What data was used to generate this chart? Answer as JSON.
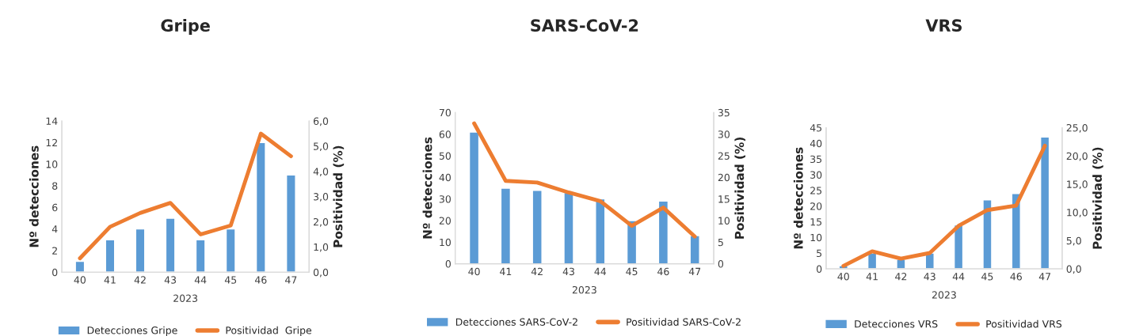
{
  "chart_data": [
    {
      "type": "bar",
      "title": "Gripe",
      "xlabel": "2023",
      "ylabel": "Nº detecciones",
      "y2label": "Positividad (%)",
      "categories": [
        "40",
        "41",
        "42",
        "43",
        "44",
        "45",
        "46",
        "47"
      ],
      "series": [
        {
          "name": "Detecciones Gripe",
          "color": "#5b9bd5",
          "values": [
            1,
            3,
            4,
            5,
            3,
            4,
            12,
            9
          ]
        },
        {
          "name": "Positividad  Gripe",
          "type": "line",
          "axis": "y2",
          "color": "#ed7d31",
          "values": [
            0.55,
            1.8,
            2.35,
            2.75,
            1.5,
            1.85,
            5.5,
            4.6
          ]
        }
      ],
      "ylim": [
        0,
        14
      ],
      "yticks": [
        0,
        2,
        4,
        6,
        8,
        10,
        12,
        14
      ],
      "y2lim": [
        0,
        6
      ],
      "y2ticks": [
        {
          "value": 0,
          "label": "0,0"
        },
        {
          "value": 1,
          "label": "1,0"
        },
        {
          "value": 2,
          "label": "2,0"
        },
        {
          "value": 3,
          "label": "3,0"
        },
        {
          "value": 4,
          "label": "4,0"
        },
        {
          "value": 5,
          "label": "5,0"
        },
        {
          "value": 6,
          "label": "6,0"
        }
      ],
      "legend": "bottom",
      "grid": false
    },
    {
      "type": "bar",
      "title": "SARS-CoV-2",
      "xlabel": "2023",
      "ylabel": "Nº detecciones",
      "y2label": "Positividad (%)",
      "categories": [
        "40",
        "41",
        "42",
        "43",
        "44",
        "45",
        "46",
        "47"
      ],
      "series": [
        {
          "name": "Detecciones SARS-CoV-2",
          "color": "#5b9bd5",
          "values": [
            61,
            35,
            34,
            33,
            30,
            20,
            29,
            13
          ]
        },
        {
          "name": "Positividad SARS-CoV-2",
          "type": "line",
          "axis": "y2",
          "color": "#ed7d31",
          "values": [
            32.5,
            19.2,
            18.8,
            16.5,
            14.5,
            8.8,
            13,
            6.3
          ]
        }
      ],
      "ylim": [
        0,
        70
      ],
      "yticks": [
        0,
        10,
        20,
        30,
        40,
        50,
        60,
        70
      ],
      "y2lim": [
        0,
        35
      ],
      "y2ticks": [
        0,
        5,
        10,
        15,
        20,
        25,
        30,
        35
      ],
      "legend": "bottom",
      "grid": false
    },
    {
      "type": "bar",
      "title": "VRS",
      "xlabel": "2023",
      "ylabel": "Nº detecciones",
      "y2label": "Positividad (%)",
      "categories": [
        "40",
        "41",
        "42",
        "43",
        "44",
        "45",
        "46",
        "47"
      ],
      "series": [
        {
          "name": "Detecciones VRS",
          "color": "#5b9bd5",
          "values": [
            1,
            5,
            3,
            5,
            14,
            22,
            24,
            42
          ]
        },
        {
          "name": "Positividad VRS",
          "type": "line",
          "axis": "y2",
          "color": "#ed7d31",
          "values": [
            0.5,
            3.1,
            1.8,
            2.8,
            7.6,
            10.4,
            11.2,
            21.8
          ]
        }
      ],
      "ylim": [
        0,
        45
      ],
      "yticks": [
        0,
        5,
        10,
        15,
        20,
        25,
        30,
        35,
        40,
        45
      ],
      "y2lim": [
        0,
        25
      ],
      "y2ticks": [
        {
          "value": 0,
          "label": "0,0"
        },
        {
          "value": 5,
          "label": "5,0"
        },
        {
          "value": 10,
          "label": "10,0"
        },
        {
          "value": 15,
          "label": "15,0"
        },
        {
          "value": 20,
          "label": "20,0"
        },
        {
          "value": 25,
          "label": "25,0"
        }
      ],
      "legend": "bottom",
      "grid": false
    }
  ]
}
